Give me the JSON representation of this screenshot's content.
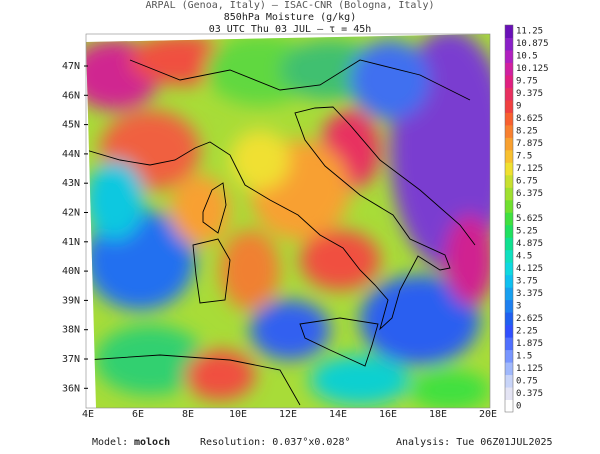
{
  "header": {
    "lines": [
      "ARPAL (Genoa, Italy)  –  ISAC-CNR (Bologna, Italy)",
      "850hPa Moisture (g/kg)",
      "03 UTC Thu 03 JUL  –  τ = 45h"
    ]
  },
  "map": {
    "lat_labels": [
      "47N",
      "46N",
      "45N",
      "44N",
      "43N",
      "42N",
      "41N",
      "40N",
      "39N",
      "38N",
      "37N",
      "36N"
    ],
    "lon_labels": [
      "4E",
      "6E",
      "8E",
      "10E",
      "12E",
      "14E",
      "16E",
      "18E",
      "20E"
    ]
  },
  "colorbar": {
    "levels": [
      {
        "label": "0",
        "color": "#ffffff"
      },
      {
        "label": "0.375",
        "color": "#e4e4f4"
      },
      {
        "label": "0.75",
        "color": "#c8d4f8"
      },
      {
        "label": "1.125",
        "color": "#a0b8fc"
      },
      {
        "label": "1.5",
        "color": "#7896ff"
      },
      {
        "label": "1.875",
        "color": "#5070ff"
      },
      {
        "label": "2.25",
        "color": "#3050ff"
      },
      {
        "label": "2.625",
        "color": "#2060f0"
      },
      {
        "label": "3",
        "color": "#1e80f0"
      },
      {
        "label": "3.375",
        "color": "#18a0f0"
      },
      {
        "label": "3.75",
        "color": "#10c0f0"
      },
      {
        "label": "4.125",
        "color": "#10d8e0"
      },
      {
        "label": "4.5",
        "color": "#10e0c0"
      },
      {
        "label": "4.875",
        "color": "#10e090"
      },
      {
        "label": "5.25",
        "color": "#20e060"
      },
      {
        "label": "5.625",
        "color": "#40e040"
      },
      {
        "label": "6",
        "color": "#70e030"
      },
      {
        "label": "6.375",
        "color": "#a0e030"
      },
      {
        "label": "6.75",
        "color": "#c8e030"
      },
      {
        "label": "7.125",
        "color": "#f0e030"
      },
      {
        "label": "7.5",
        "color": "#f8c030"
      },
      {
        "label": "7.875",
        "color": "#f8a030"
      },
      {
        "label": "8.25",
        "color": "#f88030"
      },
      {
        "label": "8.625",
        "color": "#f86030"
      },
      {
        "label": "9",
        "color": "#f04040"
      },
      {
        "label": "9.375",
        "color": "#e83060"
      },
      {
        "label": "9.75",
        "color": "#e02080"
      },
      {
        "label": "10.125",
        "color": "#d020a0"
      },
      {
        "label": "10.5",
        "color": "#b020c0"
      },
      {
        "label": "10.875",
        "color": "#8a20c8"
      },
      {
        "label": "11.25",
        "color": "#6a10b8"
      }
    ]
  },
  "footer": {
    "model": {
      "label": "Model:",
      "value": "moloch"
    },
    "resolution": "Resolution: 0.037°x0.028°",
    "analysis": "Analysis: Tue 06Z01JUL2025"
  }
}
